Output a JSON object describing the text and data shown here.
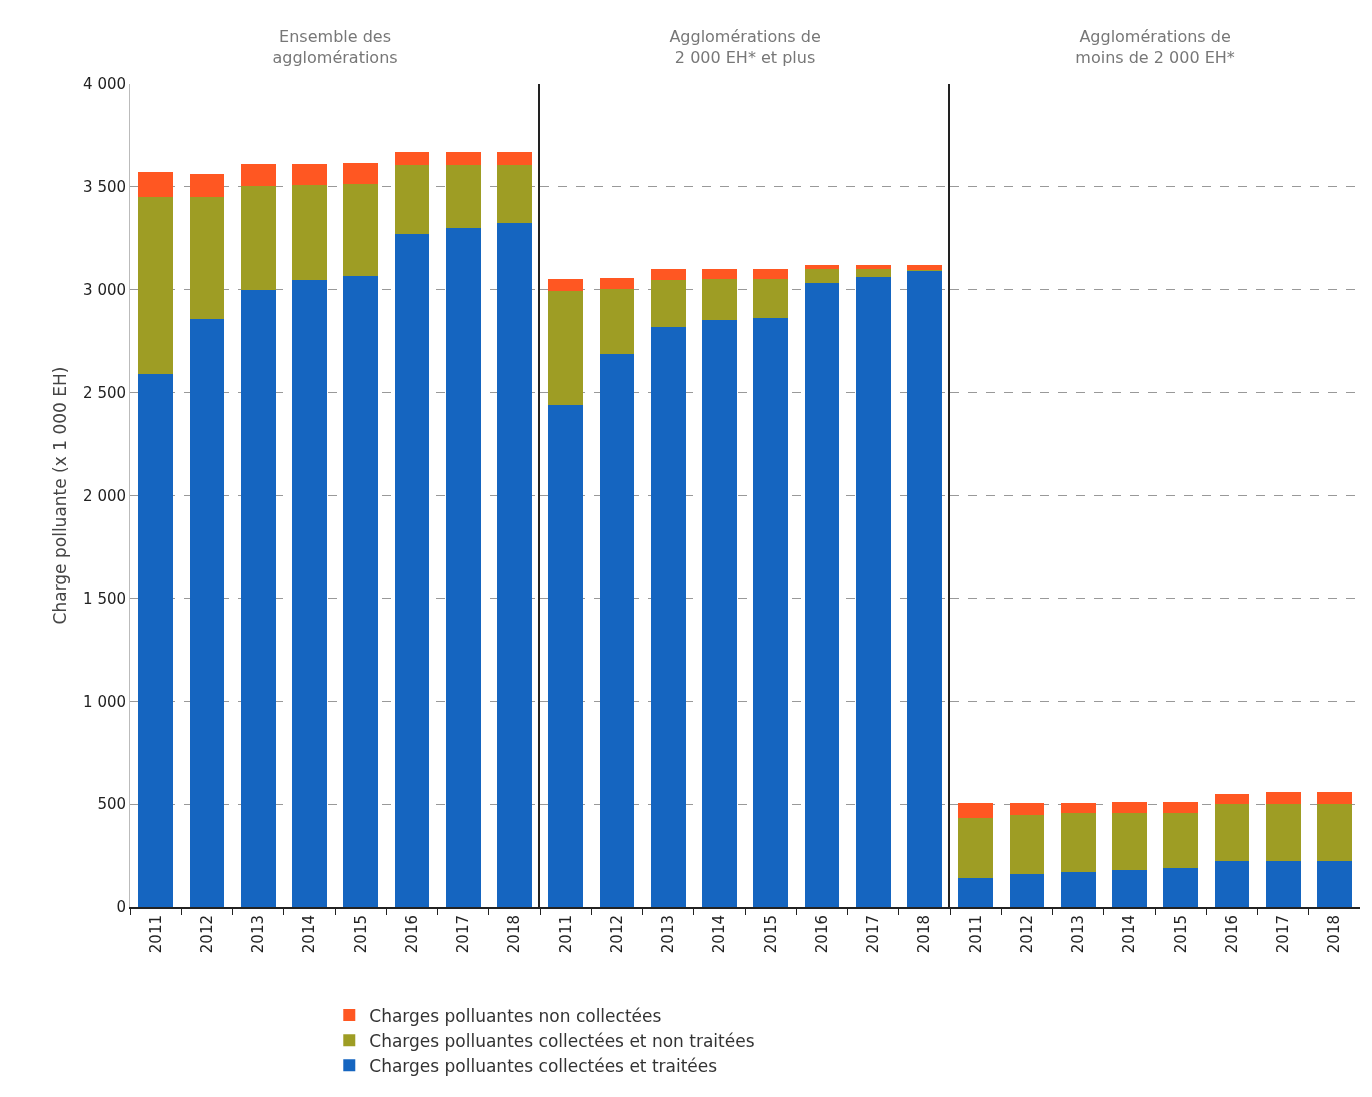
{
  "chart_data": [
    {
      "type": "bar",
      "title": "Ensemble des agglomérations",
      "ylabel": "Charge polluante (x 1 000 EH)",
      "categories": [
        "2011",
        "2012",
        "2013",
        "2014",
        "2015",
        "2016",
        "2017",
        "2018"
      ],
      "stacked": true,
      "series": [
        {
          "name": "Charges polluantes collectées et traitées",
          "color": "#1565c0",
          "values": [
            2590,
            2860,
            3000,
            3045,
            3065,
            3270,
            3300,
            3325
          ]
        },
        {
          "name": "Charges polluantes collectées et non traitées",
          "color": "#9e9d24",
          "values": [
            860,
            590,
            505,
            465,
            450,
            335,
            305,
            280
          ]
        },
        {
          "name": "Charges polluantes non collectées",
          "color": "#ff5722",
          "values": [
            120,
            115,
            105,
            100,
            100,
            65,
            65,
            65
          ]
        }
      ],
      "ylim": [
        0,
        4000
      ],
      "yticks": [
        0,
        500,
        {
          "value": 1000,
          "label": "1 000"
        },
        {
          "value": 1500,
          "label": "1 500"
        },
        {
          "value": 2000,
          "label": "2 000"
        },
        {
          "value": 2500,
          "label": "2 500"
        },
        {
          "value": 3000,
          "label": "3 000"
        },
        {
          "value": 3500,
          "label": "3 500"
        },
        {
          "value": 4000,
          "label": "4 000"
        }
      ],
      "grid": "y",
      "legend": "bottom"
    },
    {
      "type": "bar",
      "title": "Agglomérations de 2 000 EH* et plus",
      "categories": [
        "2011",
        "2012",
        "2013",
        "2014",
        "2015",
        "2016",
        "2017",
        "2018"
      ],
      "stacked": true,
      "series": [
        {
          "color": "#1565c0",
          "values": [
            2440,
            2690,
            2820,
            2855,
            2865,
            3035,
            3060,
            3090
          ]
        },
        {
          "color": "#9e9d24",
          "values": [
            555,
            315,
            225,
            195,
            185,
            65,
            40,
            5
          ]
        },
        {
          "color": "#ff5722",
          "values": [
            55,
            50,
            55,
            50,
            50,
            20,
            20,
            25
          ]
        }
      ],
      "ylim": [
        0,
        4000
      ],
      "yticks": [
        {
          "value": 500,
          "label": null
        },
        {
          "value": 1000,
          "label": null
        },
        {
          "value": 1500,
          "label": null
        },
        {
          "value": 2000,
          "label": null
        },
        {
          "value": 2500,
          "label": null
        },
        {
          "value": 3000,
          "label": null
        },
        {
          "value": 3500,
          "label": null
        },
        {
          "value": 4000,
          "label": null
        }
      ],
      "grid": "y",
      "tick_labels": "x"
    },
    {
      "type": "bar",
      "title": "Agglomérations de moins de 2 000 EH*",
      "categories": [
        "2011",
        "2012",
        "2013",
        "2014",
        "2015",
        "2016",
        "2017",
        "2018"
      ],
      "stacked": true,
      "series": [
        {
          "color": "#1565c0",
          "values": [
            140,
            160,
            170,
            180,
            190,
            225,
            225,
            225
          ]
        },
        {
          "color": "#9e9d24",
          "values": [
            295,
            285,
            285,
            275,
            265,
            275,
            275,
            275
          ]
        },
        {
          "color": "#ff5722",
          "values": [
            70,
            60,
            50,
            55,
            55,
            50,
            60,
            60
          ]
        }
      ],
      "ylim": [
        0,
        4000
      ],
      "yticks": [
        {
          "value": 500,
          "label": null
        },
        {
          "value": 1000,
          "label": null
        },
        {
          "value": 1500,
          "label": null
        },
        {
          "value": 2000,
          "label": null
        },
        {
          "value": 2500,
          "label": null
        },
        {
          "value": 3000,
          "label": null
        },
        {
          "value": 3500,
          "label": null
        },
        {
          "value": 4000,
          "label": null
        }
      ],
      "grid": "y",
      "tick_labels": "x"
    }
  ]
}
